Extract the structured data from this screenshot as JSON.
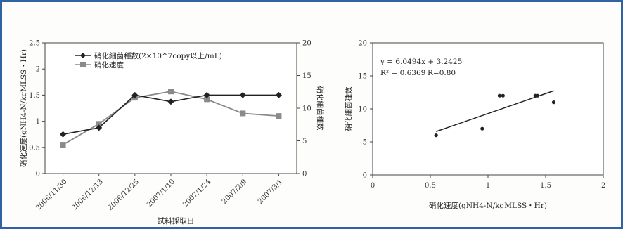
{
  "colors": {
    "frame": "#2f63a3",
    "bacteria": "#222222",
    "rate": "#8a8a8a",
    "axis": "#333333"
  },
  "chart_data": [
    {
      "type": "line",
      "categories": [
        "2006/11/30",
        "2006/12/13",
        "2006/12/25",
        "2007/1/10",
        "2007/1/24",
        "2007/2/9",
        "2007/3/1"
      ],
      "xlabel": "試料採取日",
      "ylabel_left": "硝化速度(gNH4-N/kgMLSS・Hr)",
      "ylabel_right": "硝化細菌種数",
      "ylim_left": [
        0,
        2.5
      ],
      "ylim_right": [
        0,
        20
      ],
      "left_ticks": [
        "0",
        "0.5",
        "1",
        "1.5",
        "2",
        "2.5"
      ],
      "right_ticks": [
        "0",
        "5",
        "10",
        "15",
        "20"
      ],
      "legend_position": "top-left",
      "series": [
        {
          "name": "硝化細菌種数(2×10^7copy以上/mL)",
          "axis": "right",
          "marker": "diamond",
          "values": [
            6,
            7,
            12,
            11,
            12,
            12,
            12
          ]
        },
        {
          "name": "硝化速度",
          "axis": "left",
          "marker": "square",
          "values": [
            0.55,
            0.95,
            1.45,
            1.57,
            1.42,
            1.15,
            1.1
          ]
        }
      ]
    },
    {
      "type": "scatter",
      "xlabel": "硝化速度(gNH4-N/kgMLSS・Hr)",
      "ylabel": "硝化細菌種数",
      "xlim": [
        0,
        2
      ],
      "ylim": [
        0,
        20
      ],
      "x_ticks": [
        "0",
        "0.5",
        "1",
        "1.5",
        "2"
      ],
      "y_ticks": [
        "0",
        "5",
        "10",
        "15",
        "20"
      ],
      "points": [
        {
          "x": 0.55,
          "y": 6
        },
        {
          "x": 0.95,
          "y": 7
        },
        {
          "x": 1.1,
          "y": 12
        },
        {
          "x": 1.13,
          "y": 12
        },
        {
          "x": 1.41,
          "y": 12
        },
        {
          "x": 1.43,
          "y": 12
        },
        {
          "x": 1.57,
          "y": 11
        }
      ],
      "trendline": {
        "slope": 6.0494,
        "intercept": 3.2425,
        "x_range": [
          0.55,
          1.57
        ]
      },
      "equation": "y = 6.0494x + 3.2425",
      "r_squared": "R² = 0.6369",
      "r_value": "R=0.80"
    }
  ]
}
